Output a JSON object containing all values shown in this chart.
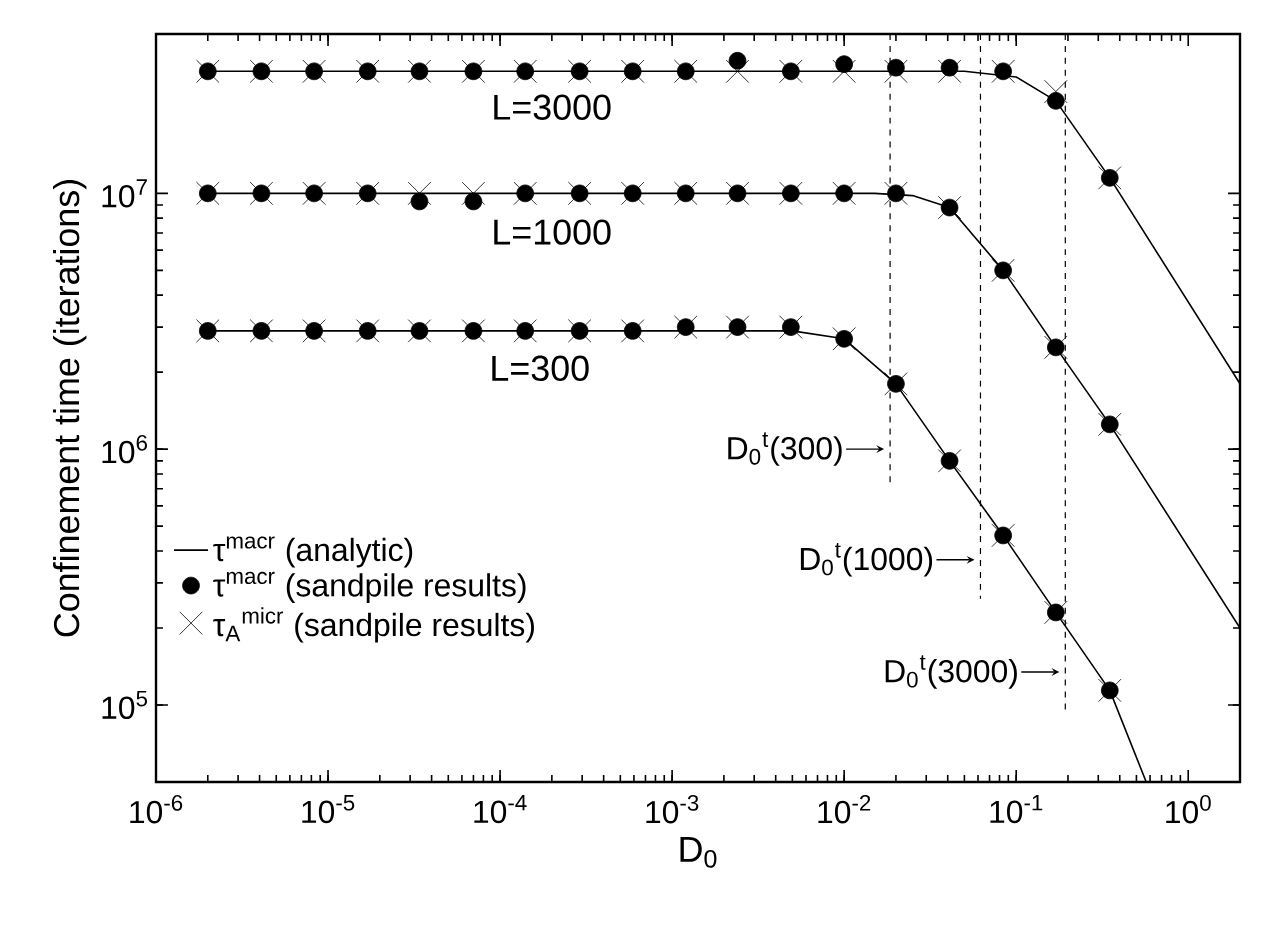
{
  "chart_data": {
    "type": "line",
    "xlabel": "D$_{0}$",
    "ylabel": "Confinement time (iterations)",
    "log": "xy",
    "xlim": [
      1e-06,
      2
    ],
    "ylim": [
      50000,
      42000000
    ],
    "xticks": [
      {
        "value": 1e-06,
        "label": "10$^{-6}$"
      },
      {
        "value": 1e-05,
        "label": "10$^{-5}$"
      },
      {
        "value": 0.0001,
        "label": "10$^{-4}$"
      },
      {
        "value": 0.001,
        "label": "10$^{-3}$"
      },
      {
        "value": 0.01,
        "label": "10$^{-2}$"
      },
      {
        "value": 0.1,
        "label": "10$^{-1}$"
      },
      {
        "value": 1,
        "label": "10$^{0}$"
      }
    ],
    "yticks": [
      {
        "value": 100000,
        "label": "10$^{5}$"
      },
      {
        "value": 1000000,
        "label": "10$^{6}$"
      },
      {
        "value": 10000000,
        "label": "10$^{7}$"
      }
    ],
    "legend": "bottom left",
    "series": [
      {
        "name": "τ$^{macr}$ (analytic)",
        "marker": "none",
        "color": "#000000",
        "x": [
          2e-06,
          0.005,
          0.01,
          0.02,
          0.041,
          0.084,
          0.17,
          0.35,
          0.57
        ],
        "values": [
          2900000,
          2900000,
          2700000,
          1800000,
          900000,
          460000,
          230000,
          114000,
          50000
        ]
      },
      {
        "marker": "none",
        "color": "#000000",
        "x": [
          2e-06,
          0.015,
          0.025,
          0.041,
          0.084,
          0.17,
          0.35,
          2
        ],
        "values": [
          10000000,
          10000000,
          9800000,
          8800000,
          5000000,
          2500000,
          1250000,
          200000
        ]
      },
      {
        "marker": "none",
        "color": "#000000",
        "x": [
          2e-06,
          0.05,
          0.1,
          0.17,
          0.35,
          2
        ],
        "values": [
          30000000,
          30000000,
          28500000,
          23000000,
          11500000,
          1800000
        ]
      },
      {
        "name": "τ$^{macr}$ (sandpile results)",
        "type": "scatter",
        "marker": "circle",
        "color": "#000000",
        "x": [
          2e-06,
          4.1e-06,
          8.3e-06,
          1.7e-05,
          3.4e-05,
          7e-05,
          0.00014,
          0.00029,
          0.00059,
          0.0012,
          0.0024,
          0.0049,
          0.01,
          0.02,
          0.041,
          0.084,
          0.17,
          0.35
        ],
        "values": [
          2900000,
          2900000,
          2900000,
          2900000,
          2900000,
          2900000,
          2900000,
          2900000,
          2900000,
          3000000,
          3000000,
          3000000,
          2700000,
          1800000,
          900000,
          460000,
          230000,
          114000
        ]
      },
      {
        "type": "scatter",
        "marker": "circle",
        "color": "#000000",
        "x": [
          2e-06,
          4.1e-06,
          8.3e-06,
          1.7e-05,
          3.4e-05,
          7e-05,
          0.00014,
          0.00029,
          0.00059,
          0.0012,
          0.0024,
          0.0049,
          0.01,
          0.02,
          0.041,
          0.084,
          0.17,
          0.35
        ],
        "values": [
          10000000,
          10000000,
          10000000,
          10000000,
          9300000,
          9300000,
          10000000,
          10000000,
          10000000,
          10000000,
          10000000,
          10000000,
          10000000,
          10000000,
          8800000,
          5000000,
          2500000,
          1250000
        ]
      },
      {
        "type": "scatter",
        "marker": "circle",
        "color": "#000000",
        "x": [
          2e-06,
          4.1e-06,
          8.3e-06,
          1.7e-05,
          3.4e-05,
          7e-05,
          0.00014,
          0.00029,
          0.00059,
          0.0012,
          0.0024,
          0.0049,
          0.01,
          0.02,
          0.041,
          0.084,
          0.17,
          0.35
        ],
        "values": [
          30000000,
          30000000,
          30000000,
          30000000,
          30000000,
          30000000,
          30000000,
          30000000,
          30000000,
          30000000,
          33000000,
          30000000,
          32000000,
          31000000,
          31000000,
          30000000,
          23000000,
          11500000
        ]
      },
      {
        "name": "τ$_{A}$$^{micr}$ (sandpile results)",
        "type": "scatter",
        "marker": "cross",
        "color": "#000000",
        "x": [
          2e-06,
          4.1e-06,
          8.3e-06,
          1.7e-05,
          3.4e-05,
          7e-05,
          0.00014,
          0.00029,
          0.00059,
          0.0012,
          0.0024,
          0.0049,
          0.01,
          0.02,
          0.041,
          0.084,
          0.17,
          0.35
        ],
        "values": [
          2900000,
          2900000,
          2900000,
          2900000,
          2900000,
          2900000,
          2900000,
          2900000,
          2900000,
          3000000,
          3000000,
          3000000,
          2700000,
          1800000,
          900000,
          460000,
          230000,
          114000
        ]
      },
      {
        "type": "scatter",
        "marker": "cross",
        "color": "#000000",
        "x": [
          2e-06,
          4.1e-06,
          8.3e-06,
          1.7e-05,
          3.4e-05,
          7e-05,
          0.00014,
          0.00029,
          0.00059,
          0.0012,
          0.0024,
          0.0049,
          0.01,
          0.02,
          0.041,
          0.084,
          0.17,
          0.35
        ],
        "values": [
          10000000,
          10000000,
          10000000,
          10000000,
          10000000,
          10000000,
          10000000,
          10000000,
          10000000,
          10000000,
          10000000,
          10000000,
          10000000,
          10000000,
          8800000,
          5000000,
          2500000,
          1250000
        ]
      },
      {
        "type": "scatter",
        "marker": "cross",
        "color": "#000000",
        "x": [
          2e-06,
          4.1e-06,
          8.3e-06,
          1.7e-05,
          3.4e-05,
          7e-05,
          0.00014,
          0.00029,
          0.00059,
          0.0012,
          0.0024,
          0.0049,
          0.01,
          0.02,
          0.041,
          0.084,
          0.17,
          0.35
        ],
        "values": [
          30000000,
          30000000,
          30000000,
          30000000,
          30000000,
          30000000,
          30000000,
          30000000,
          30000000,
          30000000,
          30000000,
          30000000,
          30000000,
          30000000,
          30000000,
          30000000,
          25000000,
          11500000
        ]
      }
    ],
    "ref_lines": [
      {
        "axis": "x",
        "value": 0.0185,
        "label": "D$_{0}$$^{t}$(300)",
        "line_style": "dashed"
      },
      {
        "axis": "x",
        "value": 0.062,
        "label": "D$_{0}$$^{t}$(1000)",
        "line_style": "dashed"
      },
      {
        "axis": "x",
        "value": 0.193,
        "label": "D$_{0}$$^{t}$(3000)",
        "line_style": "dashed"
      }
    ],
    "annotations": [
      "L=3000",
      "L=1000",
      "L=300"
    ]
  }
}
